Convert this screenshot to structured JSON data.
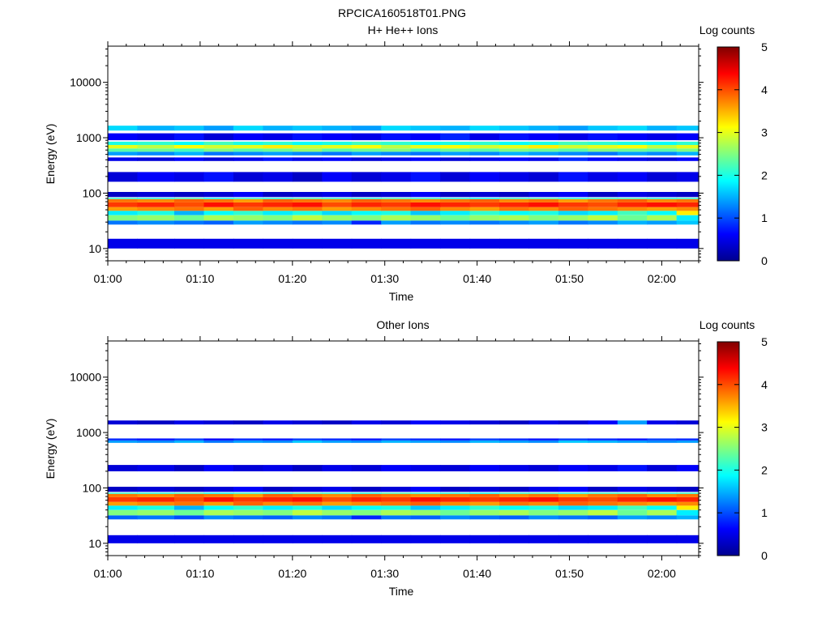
{
  "figure_title": "RPCICA160518T01.PNG",
  "colorscale": [
    "#00008f",
    "#0000ff",
    "#00ffff",
    "#ffff00",
    "#ff0000",
    "#800000"
  ],
  "chart_data": [
    {
      "type": "heatmap",
      "title": "H+ He++ Ions",
      "xlabel": "Time",
      "ylabel": "Energy (eV)",
      "yscale": "log",
      "ylim": [
        6,
        45000
      ],
      "xlim_minutes": [
        0,
        64
      ],
      "x_ticks": [
        "01:00",
        "01:10",
        "01:20",
        "01:30",
        "01:40",
        "01:50",
        "02:00"
      ],
      "y_ticks": [
        "10",
        "100",
        "1000",
        "10000"
      ],
      "colorbar": {
        "label": "Log counts",
        "ticks": [
          "0",
          "1",
          "2",
          "3",
          "4",
          "5"
        ],
        "range": [
          0,
          5
        ]
      },
      "time_columns_minutes": [
        0,
        3.2,
        7.2,
        10.4,
        13.6,
        16.8,
        20,
        23.2,
        26.4,
        29.6,
        32.8,
        36,
        39.2,
        42.4,
        45.6,
        48.8,
        52,
        55.2,
        58.4,
        61.6,
        64
      ],
      "bands": [
        {
          "energy_lo": 10,
          "energy_hi": 15,
          "values": [
            0.5,
            0.5,
            0.5,
            0.5,
            0.5,
            0.5,
            0.5,
            0.5,
            0.5,
            0.5,
            0.5,
            0.5,
            0.5,
            0.5,
            0.5,
            0.5,
            0.5,
            0.5,
            0.5,
            0.5
          ]
        },
        {
          "energy_lo": 27,
          "energy_hi": 32,
          "values": [
            1.2,
            1.3,
            1.2,
            1.1,
            1.4,
            1.3,
            1.2,
            1.3,
            0.8,
            1.4,
            1.2,
            1.3,
            1.2,
            1.3,
            1.4,
            1.2,
            1.3,
            1.5,
            1.4,
            1.6
          ]
        },
        {
          "energy_lo": 32,
          "energy_hi": 40,
          "values": [
            2.5,
            2.6,
            2.4,
            2.7,
            2.6,
            2.5,
            2.8,
            2.6,
            2.5,
            2.7,
            2.6,
            2.4,
            2.6,
            2.7,
            2.5,
            2.6,
            2.8,
            2.4,
            2.7,
            1.8
          ]
        },
        {
          "energy_lo": 40,
          "energy_hi": 48,
          "values": [
            1.8,
            2.0,
            1.5,
            1.9,
            2.1,
            1.8,
            2.0,
            1.7,
            1.9,
            2.0,
            1.6,
            1.8,
            2.1,
            1.9,
            2.0,
            1.7,
            1.8,
            2.2,
            1.9,
            3.2
          ]
        },
        {
          "energy_lo": 48,
          "energy_hi": 56,
          "values": [
            3.6,
            3.7,
            3.8,
            3.6,
            3.9,
            3.7,
            3.8,
            3.6,
            3.7,
            3.8,
            3.9,
            3.7,
            3.6,
            3.8,
            3.7,
            3.9,
            3.8,
            3.7,
            3.6,
            3.7
          ]
        },
        {
          "energy_lo": 56,
          "energy_hi": 68,
          "values": [
            4.1,
            4.2,
            4.0,
            4.3,
            4.1,
            4.2,
            4.3,
            4.0,
            4.2,
            4.1,
            4.3,
            4.2,
            4.1,
            4.2,
            4.3,
            4.1,
            4.0,
            4.2,
            4.3,
            4.2
          ]
        },
        {
          "energy_lo": 68,
          "energy_hi": 78,
          "values": [
            3.8,
            3.7,
            3.9,
            3.8,
            3.6,
            3.9,
            3.8,
            3.7,
            3.9,
            3.8,
            3.7,
            3.8,
            3.9,
            3.7,
            3.8,
            3.6,
            3.8,
            3.9,
            3.7,
            3.8
          ]
        },
        {
          "energy_lo": 78,
          "energy_hi": 82,
          "values": [
            2.1,
            2.0,
            2.2,
            1.9,
            2.1,
            2.0,
            2.2,
            2.1,
            2.0,
            2.2,
            2.1,
            2.0,
            1.9,
            2.1,
            2.2,
            2.0,
            2.1,
            2.2,
            2.0,
            2.1
          ]
        },
        {
          "energy_lo": 85,
          "energy_hi": 105,
          "values": [
            0.3,
            0.4,
            0.3,
            0.4,
            0.6,
            0.3,
            0.4,
            0.5,
            0.3,
            0.4,
            0.6,
            0.3,
            0.4,
            0.3,
            0.5,
            0.6,
            0.3,
            0.5,
            0.4,
            0.3
          ]
        },
        {
          "energy_lo": 160,
          "energy_hi": 240,
          "values": [
            0.4,
            0.6,
            0.5,
            0.7,
            0.4,
            0.5,
            0.3,
            0.6,
            0.4,
            0.5,
            0.7,
            0.4,
            0.6,
            0.5,
            0.4,
            0.7,
            0.5,
            0.6,
            0.4,
            0.5
          ]
        },
        {
          "energy_lo": 380,
          "energy_hi": 440,
          "values": [
            0.5,
            0.4,
            0.6,
            0.4,
            0.5,
            0.7,
            0.5,
            0.6,
            0.4,
            0.5,
            0.6,
            0.4,
            0.5,
            0.6,
            0.5,
            0.8,
            0.6,
            0.5,
            0.4,
            0.6
          ]
        },
        {
          "energy_lo": 480,
          "energy_hi": 560,
          "values": [
            1.4,
            1.3,
            1.5,
            1.2,
            1.3,
            1.4,
            1.3,
            1.2,
            1.4,
            1.3,
            1.2,
            1.4,
            1.3,
            1.5,
            1.4,
            1.3,
            1.2,
            1.4,
            1.3,
            1.5
          ]
        },
        {
          "energy_lo": 560,
          "energy_hi": 640,
          "values": [
            2.3,
            2.4,
            2.2,
            2.5,
            2.3,
            2.4,
            2.6,
            2.3,
            2.4,
            2.5,
            2.2,
            2.4,
            2.3,
            2.5,
            2.4,
            2.3,
            2.5,
            2.4,
            2.3,
            2.5
          ]
        },
        {
          "energy_lo": 640,
          "energy_hi": 740,
          "values": [
            3.0,
            2.8,
            3.1,
            2.9,
            3.0,
            3.2,
            2.9,
            3.0,
            3.1,
            2.8,
            3.0,
            3.1,
            2.9,
            3.0,
            3.2,
            2.9,
            3.0,
            3.1,
            2.8,
            3.0
          ]
        },
        {
          "energy_lo": 740,
          "energy_hi": 850,
          "values": [
            2.0,
            2.1,
            1.9,
            2.2,
            2.0,
            2.1,
            1.9,
            2.0,
            2.2,
            2.1,
            1.9,
            2.0,
            2.1,
            1.9,
            2.0,
            2.2,
            2.1,
            2.0,
            1.9,
            2.1
          ]
        },
        {
          "energy_lo": 900,
          "energy_hi": 1200,
          "values": [
            0.6,
            0.5,
            0.7,
            0.4,
            0.6,
            0.5,
            0.7,
            0.6,
            0.5,
            0.7,
            0.6,
            0.8,
            0.5,
            0.7,
            0.6,
            0.5,
            0.7,
            0.6,
            0.5,
            0.6
          ]
        },
        {
          "energy_lo": 1350,
          "energy_hi": 1650,
          "values": [
            1.7,
            1.5,
            1.6,
            1.4,
            1.7,
            1.5,
            1.6,
            1.5,
            1.4,
            1.7,
            1.6,
            1.5,
            1.7,
            1.6,
            1.5,
            1.4,
            1.6,
            1.7,
            1.5,
            1.6
          ]
        }
      ]
    },
    {
      "type": "heatmap",
      "title": "Other Ions",
      "xlabel": "Time",
      "ylabel": "Energy (eV)",
      "yscale": "log",
      "ylim": [
        6,
        45000
      ],
      "xlim_minutes": [
        0,
        64
      ],
      "x_ticks": [
        "01:00",
        "01:10",
        "01:20",
        "01:30",
        "01:40",
        "01:50",
        "02:00"
      ],
      "y_ticks": [
        "10",
        "100",
        "1000",
        "10000"
      ],
      "colorbar": {
        "label": "Log counts",
        "ticks": [
          "0",
          "1",
          "2",
          "3",
          "4",
          "5"
        ],
        "range": [
          0,
          5
        ]
      },
      "time_columns_minutes": [
        0,
        3.2,
        7.2,
        10.4,
        13.6,
        16.8,
        20,
        23.2,
        26.4,
        29.6,
        32.8,
        36,
        39.2,
        42.4,
        45.6,
        48.8,
        52,
        55.2,
        58.4,
        61.6,
        64
      ],
      "bands": [
        {
          "energy_lo": 10,
          "energy_hi": 14,
          "values": [
            0.5,
            0.5,
            0.5,
            0.5,
            0.5,
            0.5,
            0.5,
            0.5,
            0.5,
            0.5,
            0.5,
            0.5,
            0.5,
            0.5,
            0.5,
            0.5,
            0.5,
            0.5,
            0.5,
            0.5
          ]
        },
        {
          "energy_lo": 27,
          "energy_hi": 32,
          "values": [
            1.1,
            1.2,
            1.0,
            1.3,
            1.2,
            1.1,
            1.3,
            1.2,
            0.8,
            1.2,
            1.1,
            1.3,
            1.2,
            1.1,
            1.3,
            1.2,
            1.1,
            1.4,
            1.3,
            1.5
          ]
        },
        {
          "energy_lo": 32,
          "energy_hi": 40,
          "values": [
            2.5,
            2.6,
            2.4,
            2.7,
            2.6,
            2.5,
            2.8,
            2.6,
            2.5,
            2.7,
            2.6,
            2.4,
            2.6,
            2.7,
            2.5,
            2.6,
            2.8,
            2.4,
            2.7,
            1.8
          ]
        },
        {
          "energy_lo": 40,
          "energy_hi": 48,
          "values": [
            1.8,
            2.0,
            1.5,
            1.9,
            2.1,
            1.8,
            2.0,
            1.7,
            1.9,
            2.0,
            1.6,
            1.8,
            2.1,
            1.9,
            2.0,
            1.7,
            1.8,
            2.2,
            1.9,
            3.2
          ]
        },
        {
          "energy_lo": 48,
          "energy_hi": 56,
          "values": [
            3.6,
            3.7,
            3.8,
            3.6,
            3.9,
            3.7,
            3.8,
            3.6,
            3.7,
            3.8,
            3.9,
            3.7,
            3.6,
            3.8,
            3.7,
            3.9,
            3.8,
            3.7,
            3.6,
            3.7
          ]
        },
        {
          "energy_lo": 56,
          "energy_hi": 68,
          "values": [
            4.1,
            4.2,
            4.0,
            4.3,
            4.1,
            4.2,
            4.3,
            4.0,
            4.2,
            4.1,
            4.3,
            4.2,
            4.1,
            4.2,
            4.3,
            4.1,
            4.0,
            4.2,
            4.3,
            4.2
          ]
        },
        {
          "energy_lo": 68,
          "energy_hi": 78,
          "values": [
            3.8,
            3.7,
            3.9,
            3.8,
            3.6,
            3.9,
            3.8,
            3.7,
            3.9,
            3.8,
            3.7,
            3.8,
            3.9,
            3.7,
            3.8,
            3.6,
            3.8,
            3.9,
            3.7,
            3.8
          ]
        },
        {
          "energy_lo": 78,
          "energy_hi": 82,
          "values": [
            2.1,
            2.0,
            2.2,
            1.9,
            2.1,
            2.0,
            2.2,
            2.1,
            2.0,
            2.2,
            2.1,
            2.0,
            1.9,
            2.1,
            2.2,
            2.0,
            2.1,
            2.2,
            2.0,
            2.1
          ]
        },
        {
          "energy_lo": 85,
          "energy_hi": 105,
          "values": [
            0.3,
            0.4,
            0.3,
            0.4,
            0.6,
            0.3,
            0.4,
            0.5,
            0.3,
            0.4,
            0.6,
            0.3,
            0.4,
            0.3,
            0.5,
            0.6,
            0.3,
            0.5,
            0.4,
            0.3
          ]
        },
        {
          "energy_lo": 200,
          "energy_hi": 260,
          "values": [
            0.4,
            0.5,
            0.3,
            0.6,
            0.4,
            0.5,
            0.3,
            0.5,
            0.4,
            0.6,
            0.5,
            0.4,
            0.6,
            0.5,
            0.4,
            0.6,
            0.5,
            0.7,
            0.4,
            0.6
          ]
        },
        {
          "energy_lo": 650,
          "energy_hi": 720,
          "values": [
            1.4,
            1.3,
            1.5,
            1.2,
            1.4,
            1.3,
            1.6,
            1.4,
            1.3,
            1.5,
            1.4,
            1.3,
            1.5,
            1.4,
            1.3,
            1.6,
            1.5,
            1.4,
            1.3,
            1.4
          ]
        },
        {
          "energy_lo": 720,
          "energy_hi": 780,
          "values": [
            0.8,
            0.7,
            0.9,
            0.6,
            0.8,
            0.7,
            0.9,
            0.8,
            0.7,
            0.9,
            0.8,
            0.7,
            0.9,
            0.8,
            0.7,
            0.9,
            0.8,
            0.7,
            0.9,
            0.8
          ]
        },
        {
          "energy_lo": 1400,
          "energy_hi": 1650,
          "values": [
            0.4,
            0.3,
            0.5,
            0.4,
            0.3,
            0.5,
            0.4,
            0.3,
            0.5,
            0.4,
            0.6,
            0.5,
            0.4,
            0.3,
            0.5,
            0.4,
            0.6,
            1.4,
            0.5,
            0.4
          ]
        }
      ]
    }
  ]
}
